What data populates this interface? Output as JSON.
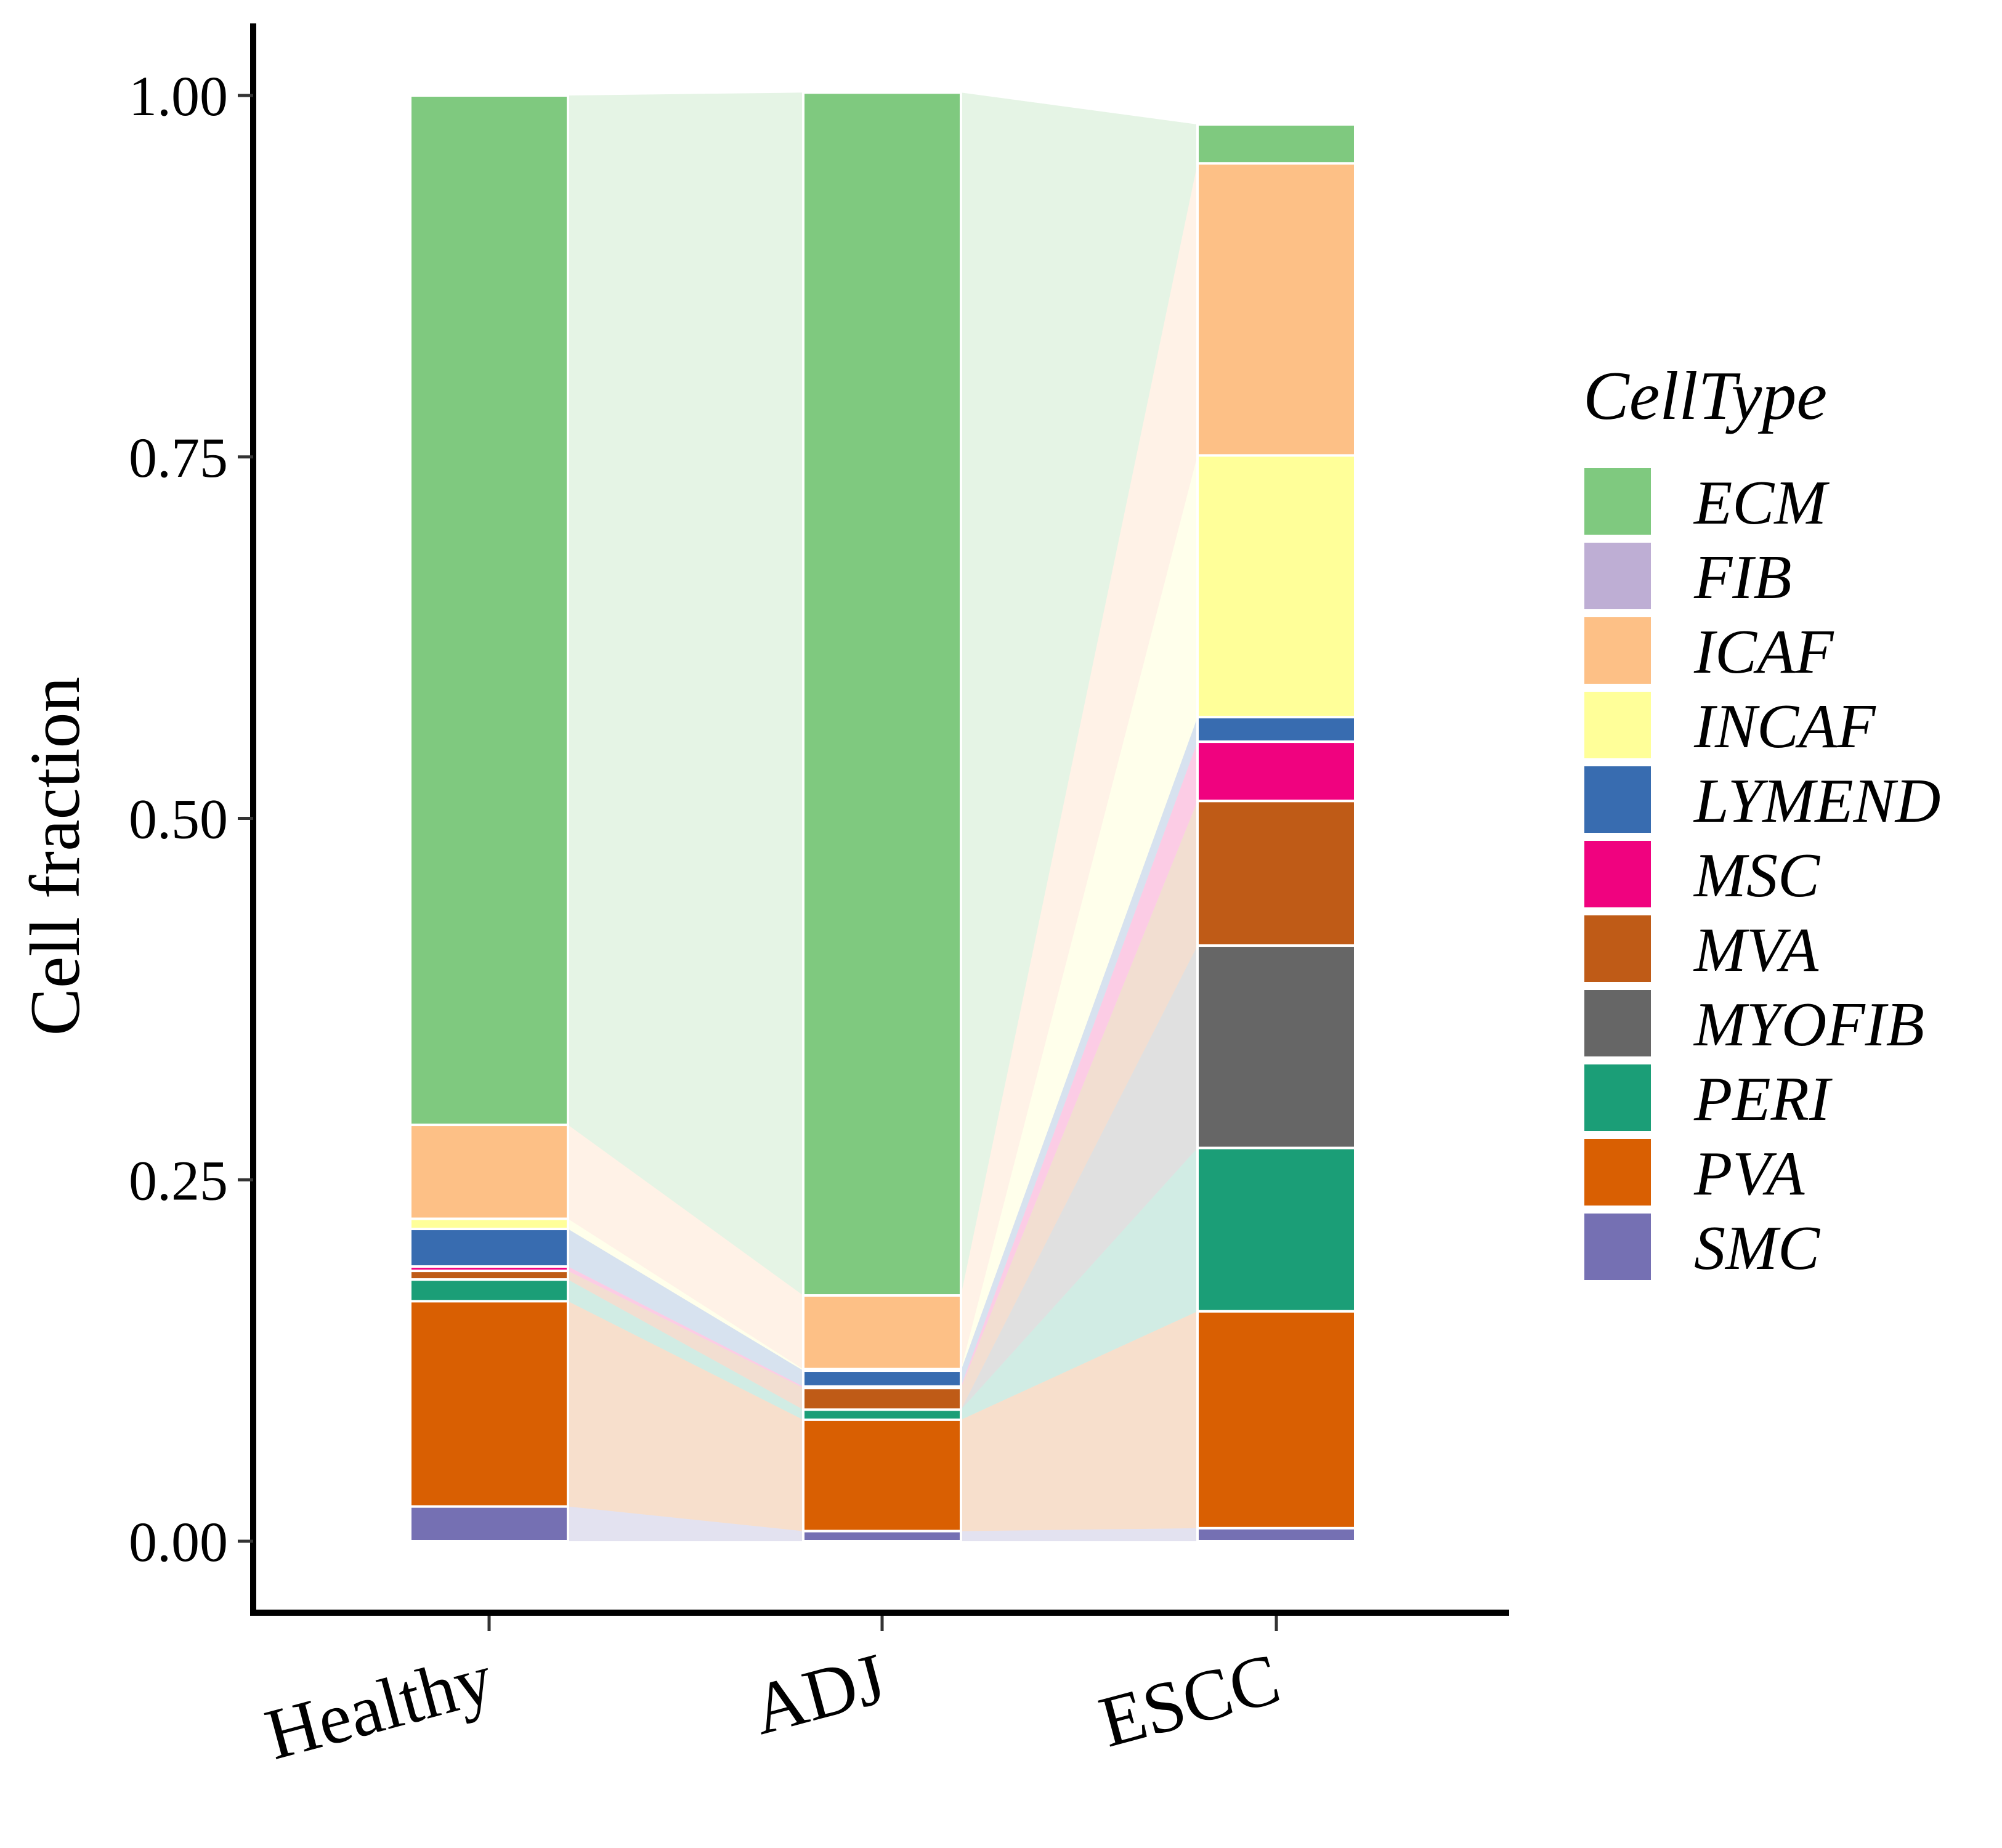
{
  "chart_data": {
    "type": "bar",
    "subtype": "stacked-alluvial",
    "title": "",
    "xlabel": "",
    "ylabel": "Cell fraction",
    "ylim": [
      -0.05,
      1.05
    ],
    "yticks": [
      "0.00",
      "0.25",
      "0.50",
      "0.75",
      "1.00"
    ],
    "ytick_values": [
      0,
      0.25,
      0.5,
      0.75,
      1.0
    ],
    "categories": [
      "Healthy",
      "ADJ",
      "ESCC"
    ],
    "legend_title": "CellType",
    "legend_position": "right",
    "series": [
      {
        "name": "ECM",
        "color": "#7FC97F",
        "values": [
          0.712,
          0.832,
          0.027
        ]
      },
      {
        "name": "FIB",
        "color": "#BEAED4",
        "values": [
          0.0,
          0.0,
          0.0
        ]
      },
      {
        "name": "ICAF",
        "color": "#FDC086",
        "values": [
          0.065,
          0.051,
          0.202
        ]
      },
      {
        "name": "INCAF",
        "color": "#FFFF99",
        "values": [
          0.007,
          0.001,
          0.181
        ]
      },
      {
        "name": "LYMEND",
        "color": "#386CB0",
        "values": [
          0.026,
          0.011,
          0.017
        ]
      },
      {
        "name": "MSC",
        "color": "#F0027F",
        "values": [
          0.003,
          0.001,
          0.041
        ]
      },
      {
        "name": "MVA",
        "color": "#BF5B17",
        "values": [
          0.006,
          0.015,
          0.1
        ]
      },
      {
        "name": "MYOFIB",
        "color": "#666666",
        "values": [
          0.0,
          0.0,
          0.14
        ]
      },
      {
        "name": "PERI",
        "color": "#1B9E77",
        "values": [
          0.015,
          0.007,
          0.113
        ]
      },
      {
        "name": "PVA",
        "color": "#D95F02",
        "values": [
          0.142,
          0.077,
          0.15
        ]
      },
      {
        "name": "SMC",
        "color": "#7570B3",
        "values": [
          0.024,
          0.007,
          0.009
        ]
      }
    ]
  }
}
